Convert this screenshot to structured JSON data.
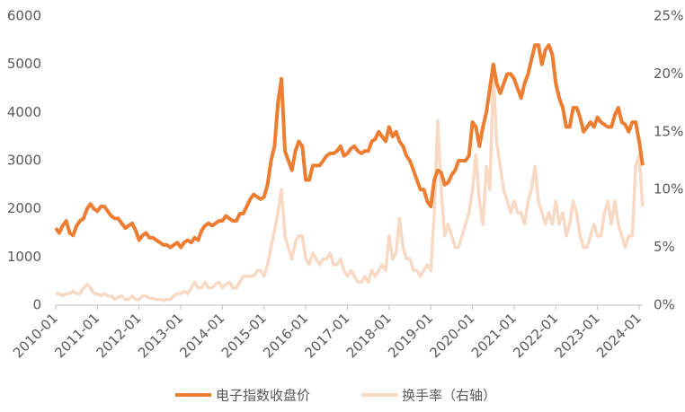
{
  "chart_data": {
    "type": "line",
    "x": [
      "2010-01",
      "2010-02",
      "2010-03",
      "2010-04",
      "2010-05",
      "2010-06",
      "2010-07",
      "2010-08",
      "2010-09",
      "2010-10",
      "2010-11",
      "2010-12",
      "2011-01",
      "2011-02",
      "2011-03",
      "2011-04",
      "2011-05",
      "2011-06",
      "2011-07",
      "2011-08",
      "2011-09",
      "2011-10",
      "2011-11",
      "2011-12",
      "2012-01",
      "2012-02",
      "2012-03",
      "2012-04",
      "2012-05",
      "2012-06",
      "2012-07",
      "2012-08",
      "2012-09",
      "2012-10",
      "2012-11",
      "2012-12",
      "2013-01",
      "2013-02",
      "2013-03",
      "2013-04",
      "2013-05",
      "2013-06",
      "2013-07",
      "2013-08",
      "2013-09",
      "2013-10",
      "2013-11",
      "2013-12",
      "2014-01",
      "2014-02",
      "2014-03",
      "2014-04",
      "2014-05",
      "2014-06",
      "2014-07",
      "2014-08",
      "2014-09",
      "2014-10",
      "2014-11",
      "2014-12",
      "2015-01",
      "2015-02",
      "2015-03",
      "2015-04",
      "2015-05",
      "2015-06",
      "2015-07",
      "2015-08",
      "2015-09",
      "2015-10",
      "2015-11",
      "2015-12",
      "2016-01",
      "2016-02",
      "2016-03",
      "2016-04",
      "2016-05",
      "2016-06",
      "2016-07",
      "2016-08",
      "2016-09",
      "2016-10",
      "2016-11",
      "2016-12",
      "2017-01",
      "2017-02",
      "2017-03",
      "2017-04",
      "2017-05",
      "2017-06",
      "2017-07",
      "2017-08",
      "2017-09",
      "2017-10",
      "2017-11",
      "2017-12",
      "2018-01",
      "2018-02",
      "2018-03",
      "2018-04",
      "2018-05",
      "2018-06",
      "2018-07",
      "2018-08",
      "2018-09",
      "2018-10",
      "2018-11",
      "2018-12",
      "2019-01",
      "2019-02",
      "2019-03",
      "2019-04",
      "2019-05",
      "2019-06",
      "2019-07",
      "2019-08",
      "2019-09",
      "2019-10",
      "2019-11",
      "2019-12",
      "2020-01",
      "2020-02",
      "2020-03",
      "2020-04",
      "2020-05",
      "2020-06",
      "2020-07",
      "2020-08",
      "2020-09",
      "2020-10",
      "2020-11",
      "2020-12",
      "2021-01",
      "2021-02",
      "2021-03",
      "2021-04",
      "2021-05",
      "2021-06",
      "2021-07",
      "2021-08",
      "2021-09",
      "2021-10",
      "2021-11",
      "2021-12",
      "2022-01",
      "2022-02",
      "2022-03",
      "2022-04",
      "2022-05",
      "2022-06",
      "2022-07",
      "2022-08",
      "2022-09",
      "2022-10",
      "2022-11",
      "2022-12",
      "2023-01",
      "2023-02",
      "2023-03",
      "2023-04",
      "2023-05",
      "2023-06",
      "2023-07",
      "2023-08",
      "2023-09",
      "2023-10",
      "2023-11",
      "2023-12",
      "2024-01",
      "2024-02"
    ],
    "series": [
      {
        "name": "电子指数收盘价",
        "color": "#ed7d31",
        "values": [
          1600,
          1500,
          1650,
          1750,
          1500,
          1450,
          1650,
          1750,
          1800,
          2000,
          2100,
          2000,
          1950,
          2050,
          2050,
          1950,
          1850,
          1800,
          1800,
          1700,
          1600,
          1650,
          1700,
          1550,
          1350,
          1450,
          1500,
          1400,
          1400,
          1350,
          1300,
          1250,
          1250,
          1200,
          1250,
          1300,
          1200,
          1300,
          1350,
          1300,
          1400,
          1350,
          1550,
          1650,
          1700,
          1650,
          1700,
          1750,
          1750,
          1850,
          1800,
          1750,
          1750,
          1900,
          1900,
          2050,
          2200,
          2300,
          2250,
          2200,
          2250,
          2500,
          3000,
          3300,
          4200,
          4700,
          3200,
          3000,
          2800,
          3200,
          3400,
          3300,
          2600,
          2600,
          2900,
          2900,
          2900,
          3000,
          3100,
          3150,
          3150,
          3200,
          3300,
          3100,
          3150,
          3250,
          3300,
          3200,
          3150,
          3200,
          3200,
          3400,
          3450,
          3600,
          3500,
          3400,
          3700,
          3500,
          3600,
          3400,
          3300,
          3100,
          3000,
          2800,
          2600,
          2400,
          2400,
          2150,
          2050,
          2600,
          2800,
          2750,
          2500,
          2550,
          2700,
          2800,
          3000,
          3000,
          3000,
          3100,
          3800,
          3700,
          3300,
          3700,
          4000,
          4500,
          5000,
          4600,
          4400,
          4600,
          4800,
          4800,
          4700,
          4500,
          4300,
          4600,
          4800,
          5100,
          5400,
          5400,
          5000,
          5300,
          5400,
          5200,
          4600,
          4300,
          4100,
          3700,
          3700,
          4100,
          4100,
          3900,
          3600,
          3700,
          3800,
          3700,
          3900,
          3800,
          3750,
          3700,
          3700,
          3950,
          4100,
          3800,
          3750,
          3600,
          3800,
          3800,
          3400,
          2900
        ]
      },
      {
        "name": "换手率（右轴）",
        "color": "#f8d9c4",
        "axis": "y2",
        "values": [
          1,
          1,
          0.8,
          1,
          1,
          1.2,
          1,
          1,
          1.5,
          1.8,
          1.5,
          1,
          1,
          0.8,
          1,
          0.8,
          0.8,
          0.5,
          0.7,
          0.8,
          0.5,
          0.5,
          0.8,
          0.5,
          0.5,
          0.8,
          0.8,
          0.6,
          0.6,
          0.5,
          0.5,
          0.4,
          0.5,
          0.5,
          0.8,
          1,
          1,
          1.2,
          1,
          1.5,
          2,
          1.5,
          1.5,
          2,
          1.5,
          1.5,
          1.8,
          2,
          1.5,
          1.8,
          2,
          1.5,
          1.5,
          2,
          2.5,
          2.5,
          2.5,
          2.5,
          3,
          3,
          2.5,
          3.5,
          5,
          6.5,
          8,
          10,
          6,
          5,
          4,
          5.5,
          6,
          6,
          4,
          3.5,
          4.5,
          4,
          3.5,
          4,
          4,
          4.5,
          3.5,
          3.5,
          4,
          3,
          2.5,
          3,
          2.5,
          2,
          2,
          2.5,
          2,
          3,
          2.5,
          3,
          3.5,
          3,
          6,
          4,
          4.5,
          7.5,
          5,
          4,
          4,
          3,
          3,
          2.5,
          3,
          3.5,
          3,
          8,
          16,
          10,
          6,
          7,
          6,
          5,
          5,
          6,
          7,
          8,
          10,
          13,
          9,
          7,
          12,
          10,
          20,
          14,
          12,
          10,
          9,
          8,
          9,
          8,
          8,
          7,
          9,
          10,
          12,
          9,
          8,
          7,
          8,
          7,
          9,
          7,
          8,
          6,
          7,
          9,
          8,
          6,
          5,
          5,
          6,
          7,
          6,
          6,
          8,
          9,
          7,
          9,
          7,
          6,
          5,
          6,
          6,
          12,
          13,
          8.5
        ]
      }
    ],
    "xlim": [
      "2010-01",
      "2024-02"
    ],
    "xticks": [
      "2010-01",
      "2011-01",
      "2012-01",
      "2013-01",
      "2014-01",
      "2015-01",
      "2016-01",
      "2017-01",
      "2018-01",
      "2019-01",
      "2020-01",
      "2021-01",
      "2022-01",
      "2023-01",
      "2024-01"
    ],
    "ylim": [
      0,
      6000
    ],
    "yticks": [
      0,
      1000,
      2000,
      3000,
      4000,
      5000,
      6000
    ],
    "y2lim": [
      0,
      25
    ],
    "y2ticks": [
      {
        "value": 0,
        "label": "0%"
      },
      {
        "value": 5,
        "label": "5%"
      },
      {
        "value": 10,
        "label": "10%"
      },
      {
        "value": 15,
        "label": "15%"
      },
      {
        "value": 20,
        "label": "20%"
      },
      {
        "value": 25,
        "label": "25%"
      }
    ],
    "legend": "bottom"
  }
}
